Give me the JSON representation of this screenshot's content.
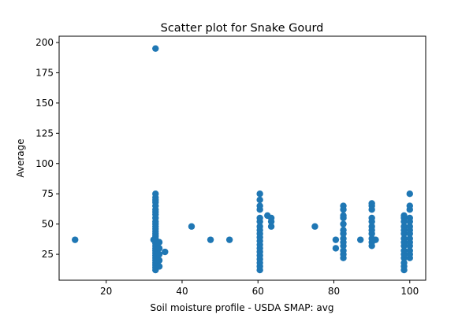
{
  "chart_data": {
    "type": "scatter",
    "title": "Scatter plot for Snake Gourd",
    "x_label": "Soil moisture profile - USDA SMAP: avg",
    "y_label": "Average",
    "color": "#1f77b4",
    "xlim": [
      7.6,
      104.2
    ],
    "ylim": [
      3.6,
      205.2
    ],
    "xticks": [
      20,
      40,
      60,
      80,
      100
    ],
    "yticks": [
      25,
      50,
      75,
      100,
      125,
      150,
      175,
      200
    ],
    "x": [
      33,
      33,
      33,
      33,
      33,
      33,
      33,
      33,
      33,
      33,
      33,
      33,
      33,
      33,
      33,
      33,
      33,
      33,
      33,
      33,
      33,
      33,
      33,
      33,
      33,
      33,
      33,
      33,
      33,
      33,
      33,
      34,
      34,
      34,
      34,
      34,
      32.5,
      35.5,
      11.8,
      42.5,
      47.5,
      52.5,
      60.5,
      60.5,
      60.5,
      60.5,
      60.5,
      60.5,
      60.5,
      60.5,
      60.5,
      60.5,
      60.5,
      60.5,
      60.5,
      60.5,
      60.5,
      60.5,
      60.5,
      60.5,
      60.5,
      62.5,
      63.5,
      63.5,
      63.5,
      75,
      80.5,
      80.5,
      82.5,
      82.5,
      82.5,
      82.5,
      82.5,
      82.5,
      82.5,
      82.5,
      82.5,
      82.5,
      82.5,
      82.5,
      82.5,
      87,
      90,
      90,
      90,
      90,
      90,
      90,
      90,
      90,
      90,
      90,
      90,
      91,
      98.5,
      98.5,
      98.5,
      98.5,
      98.5,
      98.5,
      98.5,
      98.5,
      98.5,
      98.5,
      98.5,
      98.5,
      98.5,
      98.5,
      98.5,
      100,
      100,
      100,
      100,
      100,
      100,
      100,
      100,
      100,
      100,
      100,
      100,
      100,
      100
    ],
    "y": [
      12,
      14,
      16,
      18,
      20,
      22,
      24,
      26,
      28,
      30,
      32,
      34,
      36,
      38,
      40,
      42,
      44,
      46,
      48,
      50,
      52,
      55,
      58,
      60,
      62,
      65,
      68,
      70,
      72,
      75,
      195,
      15,
      20,
      25,
      30,
      35,
      37,
      27,
      37,
      48,
      37,
      37,
      12,
      15,
      18,
      21,
      24,
      27,
      30,
      33,
      36,
      39,
      42,
      45,
      48,
      52,
      55,
      62,
      65,
      70,
      75,
      57,
      48,
      52,
      55,
      48,
      30,
      37,
      22,
      25,
      28,
      32,
      35,
      38,
      42,
      45,
      50,
      55,
      57,
      62,
      65,
      37,
      32,
      35,
      38,
      42,
      45,
      48,
      52,
      55,
      62,
      65,
      67,
      37,
      12,
      15,
      18,
      22,
      25,
      28,
      32,
      35,
      38,
      42,
      45,
      48,
      52,
      55,
      57,
      22,
      25,
      28,
      32,
      35,
      38,
      42,
      45,
      48,
      52,
      55,
      62,
      65,
      75
    ]
  }
}
